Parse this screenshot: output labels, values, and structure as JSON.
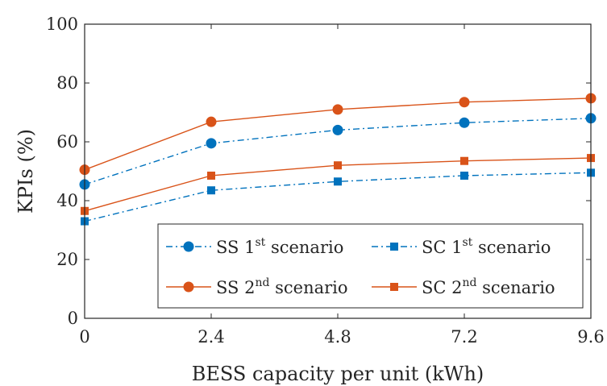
{
  "chart_data": {
    "type": "line",
    "x": [
      0,
      2.4,
      4.8,
      7.2,
      9.6
    ],
    "x_tick_labels": [
      "0",
      "2.4",
      "4.8",
      "7.2",
      "9.6"
    ],
    "y_tick_labels": [
      "0",
      "20",
      "40",
      "60",
      "80",
      "100"
    ],
    "xlabel": "BESS capacity per unit (kWh)",
    "ylabel": "KPIs (%)",
    "xlim": [
      0,
      9.6
    ],
    "ylim": [
      0,
      100
    ],
    "grid": false,
    "legend_position": "bottom-right",
    "series": [
      {
        "name": "SS 1st scenario",
        "label_parts": {
          "base": "SS 1",
          "sup": "st",
          "rest": " scenario"
        },
        "values": [
          45.5,
          59.5,
          64,
          66.5,
          68
        ],
        "color": "#0072BD",
        "line_style": "dash-dot",
        "marker": "circle"
      },
      {
        "name": "SC 1st scenario",
        "label_parts": {
          "base": "SC 1",
          "sup": "st",
          "rest": " scenario"
        },
        "values": [
          33,
          43.5,
          46.5,
          48.5,
          49.5
        ],
        "color": "#0072BD",
        "line_style": "dash-dot",
        "marker": "square"
      },
      {
        "name": "SS 2nd scenario",
        "label_parts": {
          "base": "SS 2",
          "sup": "nd",
          "rest": " scenario"
        },
        "values": [
          50.5,
          66.8,
          71,
          73.5,
          74.8
        ],
        "color": "#D95319",
        "line_style": "solid",
        "marker": "circle"
      },
      {
        "name": "SC 2nd scenario",
        "label_parts": {
          "base": "SC 2",
          "sup": "nd",
          "rest": " scenario"
        },
        "values": [
          36.5,
          48.5,
          52,
          53.5,
          54.5
        ],
        "color": "#D95319",
        "line_style": "solid",
        "marker": "square"
      }
    ]
  }
}
